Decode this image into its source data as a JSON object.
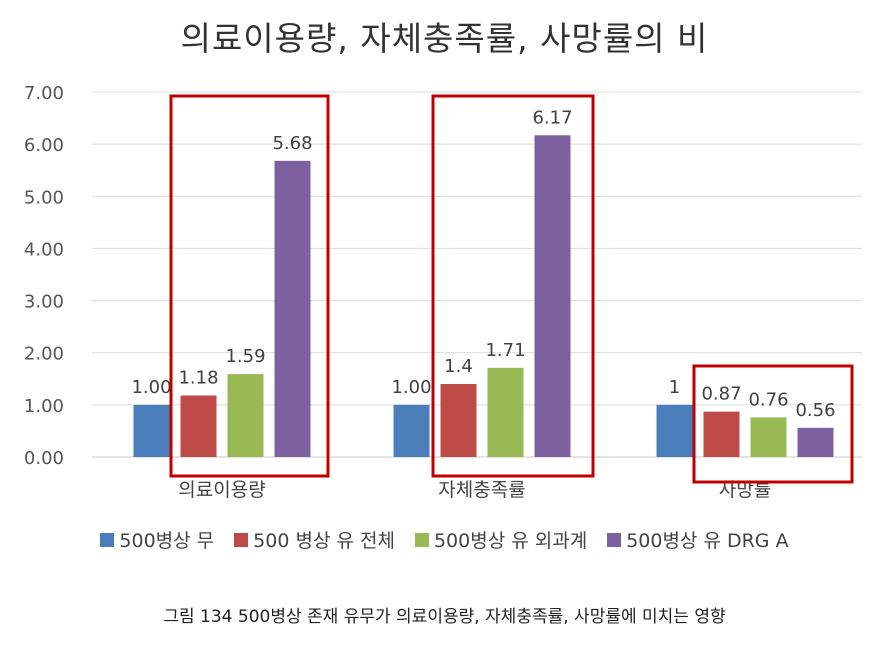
{
  "chart_data": {
    "type": "bar",
    "title": "의료이용량, 자체충족률, 사망률의 비",
    "categories": [
      "의료이용량",
      "자체충족률",
      "사망률"
    ],
    "series": [
      {
        "name": "500병상 무",
        "color": "#4a7ebb",
        "values": [
          1.0,
          1.0,
          1
        ],
        "labels": [
          "1.00",
          "1.00",
          "1"
        ]
      },
      {
        "name": "500 병상 유 전체",
        "color": "#be4b48",
        "values": [
          1.18,
          1.4,
          0.87
        ],
        "labels": [
          "1.18",
          "1.4",
          "0.87"
        ]
      },
      {
        "name": "500병상 유 외과계",
        "color": "#98b954",
        "values": [
          1.59,
          1.71,
          0.76
        ],
        "labels": [
          "1.59",
          "1.71",
          "0.76"
        ]
      },
      {
        "name": "500병상 유 DRG A",
        "color": "#7d60a0",
        "values": [
          5.68,
          6.17,
          0.56
        ],
        "labels": [
          "5.68",
          "6.17",
          "0.56"
        ]
      }
    ],
    "ylim": [
      0,
      7
    ],
    "yticks": [
      "0.00",
      "1.00",
      "2.00",
      "3.00",
      "4.00",
      "5.00",
      "6.00",
      "7.00"
    ],
    "grid": true,
    "legend_position": "bottom",
    "highlight_color": "#c00000"
  },
  "caption": "그림 134 500병상 존재 유무가 의료이용량, 자체충족률, 사망률에 미치는 영향"
}
